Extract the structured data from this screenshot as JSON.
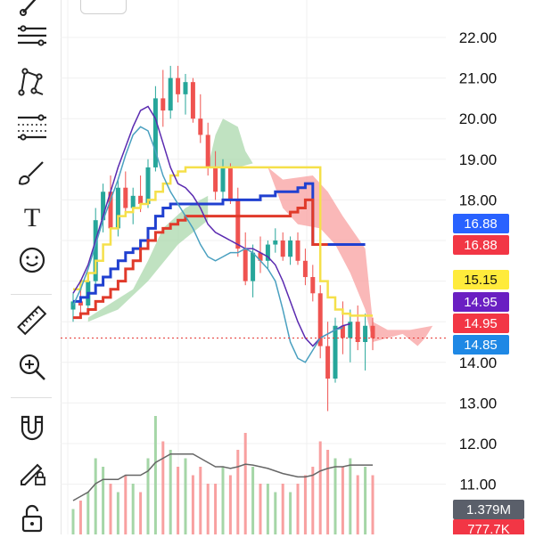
{
  "toolbar": {
    "tools": [
      {
        "name": "trendline-tool-icon"
      },
      {
        "name": "horizontal-lines-tool-icon"
      },
      {
        "name": "pattern-tool-icon"
      },
      {
        "name": "fib-retracement-tool-icon"
      },
      {
        "name": "brush-tool-icon"
      },
      {
        "name": "text-tool-icon"
      },
      {
        "name": "emoji-tool-icon"
      },
      {
        "name": "ruler-tool-icon"
      },
      {
        "name": "zoom-in-tool-icon"
      },
      {
        "name": "magnet-tool-icon"
      },
      {
        "name": "lock-drawing-tool-icon"
      },
      {
        "name": "lock-tool-icon"
      }
    ],
    "text_tool_glyph": "T"
  },
  "chart_data": {
    "type": "candlestick",
    "y_axis_ticks": [
      "22.00",
      "21.00",
      "20.00",
      "19.00",
      "18.00",
      "14.00",
      "13.00",
      "12.00",
      "11.00"
    ],
    "ylim": [
      10.3,
      23.2
    ],
    "grid": true,
    "price_tags": [
      {
        "label": "16.88",
        "value": 16.88,
        "color": "#2962ff",
        "text_color": "#ffffff"
      },
      {
        "label": "16.88",
        "value": 16.88,
        "color": "#f23645",
        "text_color": "#ffffff"
      },
      {
        "label": "15.15",
        "value": 15.15,
        "color": "#ffeb3b",
        "text_color": "#111111"
      },
      {
        "label": "14.95",
        "value": 14.95,
        "color": "#6a1fc2",
        "text_color": "#ffffff"
      },
      {
        "label": "14.95",
        "value": 14.95,
        "color": "#f23645",
        "text_color": "#ffffff"
      },
      {
        "label": "14.85",
        "value": 14.85,
        "color": "#1e88e5",
        "text_color": "#ffffff"
      }
    ],
    "volume_tags": [
      {
        "label": "1.379M",
        "color": "#5a5f6a",
        "text_color": "#ffffff"
      },
      {
        "label": "777.7K",
        "color": "#f23645",
        "text_color": "#ffffff"
      }
    ],
    "last_price": 14.6,
    "candles": [
      {
        "o": 15.3,
        "h": 15.7,
        "l": 15.0,
        "c": 15.5
      },
      {
        "o": 15.5,
        "h": 15.9,
        "l": 15.2,
        "c": 15.4
      },
      {
        "o": 15.4,
        "h": 16.2,
        "l": 15.3,
        "c": 16.0
      },
      {
        "o": 16.0,
        "h": 17.8,
        "l": 15.9,
        "c": 17.5
      },
      {
        "o": 17.5,
        "h": 18.4,
        "l": 17.2,
        "c": 18.2
      },
      {
        "o": 18.2,
        "h": 18.6,
        "l": 17.0,
        "c": 17.3
      },
      {
        "o": 17.3,
        "h": 18.5,
        "l": 17.1,
        "c": 18.3
      },
      {
        "o": 18.3,
        "h": 18.7,
        "l": 17.6,
        "c": 17.8
      },
      {
        "o": 17.8,
        "h": 18.3,
        "l": 17.4,
        "c": 18.1
      },
      {
        "o": 18.1,
        "h": 18.6,
        "l": 17.7,
        "c": 17.9
      },
      {
        "o": 17.9,
        "h": 19.0,
        "l": 17.8,
        "c": 18.8
      },
      {
        "o": 18.8,
        "h": 20.8,
        "l": 18.7,
        "c": 20.5
      },
      {
        "o": 20.5,
        "h": 21.2,
        "l": 19.8,
        "c": 20.2
      },
      {
        "o": 20.2,
        "h": 21.3,
        "l": 20.0,
        "c": 21.0
      },
      {
        "o": 21.0,
        "h": 21.3,
        "l": 20.4,
        "c": 20.6
      },
      {
        "o": 20.6,
        "h": 21.1,
        "l": 20.1,
        "c": 20.9
      },
      {
        "o": 20.9,
        "h": 21.0,
        "l": 19.9,
        "c": 20.0
      },
      {
        "o": 20.0,
        "h": 20.6,
        "l": 19.4,
        "c": 19.6
      },
      {
        "o": 19.6,
        "h": 19.9,
        "l": 18.6,
        "c": 18.8
      },
      {
        "o": 18.8,
        "h": 19.2,
        "l": 18.0,
        "c": 18.2
      },
      {
        "o": 18.2,
        "h": 19.0,
        "l": 17.9,
        "c": 18.8
      },
      {
        "o": 18.8,
        "h": 18.9,
        "l": 17.9,
        "c": 18.0
      },
      {
        "o": 18.0,
        "h": 18.3,
        "l": 16.6,
        "c": 16.8
      },
      {
        "o": 16.8,
        "h": 17.2,
        "l": 15.9,
        "c": 16.0
      },
      {
        "o": 16.0,
        "h": 16.9,
        "l": 15.6,
        "c": 16.7
      },
      {
        "o": 16.7,
        "h": 17.1,
        "l": 16.2,
        "c": 16.5
      },
      {
        "o": 16.5,
        "h": 17.0,
        "l": 16.3,
        "c": 16.9
      },
      {
        "o": 16.9,
        "h": 17.3,
        "l": 16.7,
        "c": 17.0
      },
      {
        "o": 17.0,
        "h": 17.2,
        "l": 16.5,
        "c": 16.6
      },
      {
        "o": 16.6,
        "h": 17.1,
        "l": 16.4,
        "c": 17.0
      },
      {
        "o": 17.0,
        "h": 17.2,
        "l": 16.4,
        "c": 16.5
      },
      {
        "o": 16.5,
        "h": 16.8,
        "l": 15.9,
        "c": 16.1
      },
      {
        "o": 16.1,
        "h": 16.4,
        "l": 15.5,
        "c": 15.7
      },
      {
        "o": 15.7,
        "h": 15.9,
        "l": 14.1,
        "c": 14.4
      },
      {
        "o": 14.4,
        "h": 15.0,
        "l": 12.8,
        "c": 13.6
      },
      {
        "o": 13.6,
        "h": 15.1,
        "l": 13.5,
        "c": 14.9
      },
      {
        "o": 14.9,
        "h": 15.5,
        "l": 14.2,
        "c": 14.6
      },
      {
        "o": 14.6,
        "h": 15.3,
        "l": 14.0,
        "c": 15.0
      },
      {
        "o": 15.0,
        "h": 15.4,
        "l": 14.3,
        "c": 14.5
      },
      {
        "o": 14.5,
        "h": 15.2,
        "l": 13.8,
        "c": 14.9
      },
      {
        "o": 14.9,
        "h": 15.1,
        "l": 14.3,
        "c": 14.6
      }
    ],
    "volume": [
      3,
      4,
      5,
      9,
      8,
      6,
      5,
      7,
      6,
      5,
      9,
      14,
      11,
      10,
      8,
      9,
      7,
      8,
      6,
      6,
      8,
      7,
      10,
      12,
      8,
      6,
      6,
      5,
      6,
      5,
      6,
      7,
      8,
      11,
      10,
      9,
      8,
      9,
      7,
      8,
      7
    ],
    "volume_ma": [
      4,
      4.5,
      5,
      6,
      6.5,
      6.5,
      6.5,
      7,
      7,
      7,
      7.5,
      8.5,
      9,
      9.5,
      9.5,
      9.5,
      9.5,
      9,
      8.5,
      8,
      8,
      7.8,
      8,
      8.3,
      8.2,
      8,
      7.8,
      7.5,
      7.2,
      7,
      6.8,
      6.8,
      7,
      7.5,
      7.8,
      8,
      8,
      8.2,
      8.2,
      8.2,
      8.2
    ],
    "lines": {
      "blue": [
        15.5,
        15.6,
        15.7,
        15.9,
        16.1,
        16.3,
        16.5,
        16.7,
        16.8,
        17.0,
        17.3,
        17.6,
        17.8,
        17.9,
        17.9,
        17.9,
        17.9,
        17.9,
        17.9,
        17.9,
        18.0,
        18.0,
        18.0,
        18.0,
        18.0,
        18.1,
        18.1,
        18.2,
        18.2,
        18.2,
        18.3,
        18.4,
        16.9,
        16.9,
        16.9,
        16.9,
        16.9,
        16.9,
        16.9,
        16.9
      ],
      "red": [
        15.1,
        15.2,
        15.3,
        15.5,
        15.6,
        15.8,
        16.0,
        16.3,
        16.5,
        16.8,
        17.0,
        17.2,
        17.3,
        17.4,
        17.5,
        17.6,
        17.6,
        17.6,
        17.6,
        17.6,
        17.6,
        17.6,
        17.6,
        17.6,
        17.6,
        17.6,
        17.6,
        17.6,
        17.6,
        17.7,
        17.8,
        18.0,
        16.9,
        16.9,
        16.9
      ],
      "yellow": [
        15.8,
        16.0,
        16.2,
        16.5,
        16.9,
        17.3,
        17.6,
        17.7,
        17.8,
        17.9,
        18.0,
        18.2,
        18.4,
        18.6,
        18.7,
        18.8,
        18.8,
        18.8,
        18.8,
        18.8,
        18.8,
        18.8,
        18.8,
        18.8,
        18.8,
        18.8,
        18.8,
        18.8,
        18.8,
        18.8,
        18.8,
        18.8,
        18.8,
        16.0,
        15.6,
        15.3,
        15.2,
        15.15,
        15.15,
        15.15,
        15.15
      ],
      "purple": [
        15.7,
        16.0,
        16.4,
        17.0,
        17.6,
        18.2,
        18.8,
        19.3,
        19.8,
        20.2,
        20.3,
        20.0,
        19.4,
        18.8,
        18.4,
        18.3,
        18.1,
        17.8,
        17.4,
        17.2,
        17.1,
        17.0,
        16.9,
        16.8,
        16.8,
        16.7,
        16.6,
        16.4,
        16.0,
        15.5,
        15.0,
        14.6,
        14.4,
        14.6,
        14.7,
        14.8,
        14.9,
        14.95
      ],
      "teal": [
        15.4,
        15.8,
        16.3,
        16.9,
        17.5,
        18.0,
        18.5,
        19.1,
        19.6,
        19.8,
        19.7,
        19.2,
        18.6,
        18.2,
        17.9,
        17.6,
        17.3,
        16.9,
        16.6,
        16.5,
        16.6,
        16.7,
        16.7,
        16.8,
        16.7,
        16.5,
        16.3,
        16.0,
        15.3,
        14.5,
        14.1,
        14.0,
        14.3,
        14.6,
        14.7,
        14.8,
        14.85
      ]
    }
  }
}
